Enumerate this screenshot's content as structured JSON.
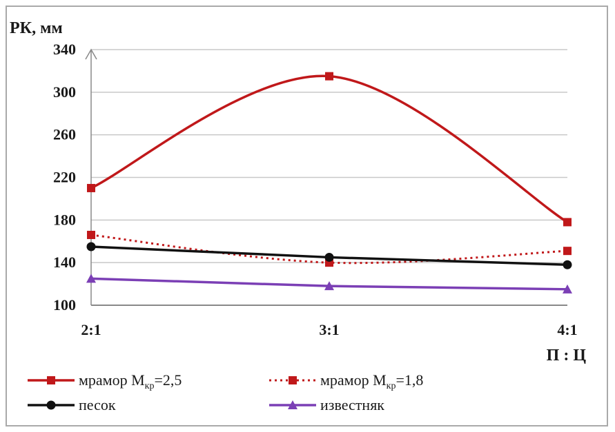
{
  "chart_data": {
    "type": "line",
    "title": "",
    "ylabel": "РК, мм",
    "xlabel": "П : Ц",
    "categories": [
      "2:1",
      "3:1",
      "4:1"
    ],
    "ylim": [
      100,
      340
    ],
    "yticks": [
      100,
      140,
      180,
      220,
      260,
      300,
      340
    ],
    "grid": true,
    "legend_placement": "bottom",
    "series": [
      {
        "name": "мрамор Мкр=2,5",
        "name_main": "мрамор М",
        "name_sub": "кр",
        "name_tail": "=2,5",
        "values": [
          210,
          315,
          178
        ],
        "color": "#c0181a",
        "marker": "square",
        "dash": "solid",
        "smooth": true
      },
      {
        "name": "мрамор Мкр=1,8",
        "name_main": "мрамор М",
        "name_sub": "кр",
        "name_tail": "=1,8",
        "values": [
          166,
          140,
          151
        ],
        "color": "#c0181a",
        "marker": "square",
        "dash": "dotted",
        "smooth": true
      },
      {
        "name": "песок",
        "name_main": "песок",
        "name_sub": "",
        "name_tail": "",
        "values": [
          155,
          145,
          138
        ],
        "color": "#111111",
        "marker": "circle",
        "dash": "solid",
        "smooth": false
      },
      {
        "name": "известняк",
        "name_main": "известняк",
        "name_sub": "",
        "name_tail": "",
        "values": [
          125,
          118,
          115
        ],
        "color": "#7b3fb5",
        "marker": "triangle",
        "dash": "solid",
        "smooth": false
      }
    ]
  }
}
